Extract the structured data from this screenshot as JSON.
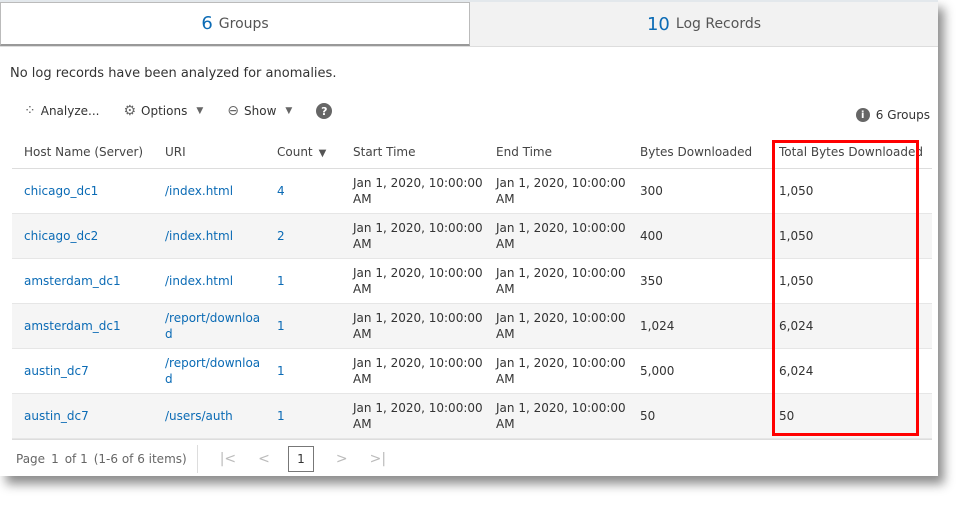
{
  "tabs": [
    {
      "num": "6",
      "label": "Groups"
    },
    {
      "num": "10",
      "label": "Log Records"
    }
  ],
  "message": "No log records have been analyzed for anomalies.",
  "toolbar": {
    "analyze": "Analyze...",
    "options": "Options",
    "show": "Show"
  },
  "group_count": "6 Groups",
  "columns": [
    "Host Name (Server)",
    "URI",
    "Count",
    "Start Time",
    "End Time",
    "Bytes Downloaded",
    "Total Bytes Downloaded"
  ],
  "rows": [
    [
      "chicago_dc1",
      "/index.html",
      "4",
      "Jan 1, 2020, 10:00:00 AM",
      "Jan 1, 2020, 10:00:00 AM",
      "300",
      "1,050"
    ],
    [
      "chicago_dc2",
      "/index.html",
      "2",
      "Jan 1, 2020, 10:00:00 AM",
      "Jan 1, 2020, 10:00:00 AM",
      "400",
      "1,050"
    ],
    [
      "amsterdam_dc1",
      "/index.html",
      "1",
      "Jan 1, 2020, 10:00:00 AM",
      "Jan 1, 2020, 10:00:00 AM",
      "350",
      "1,050"
    ],
    [
      "amsterdam_dc1",
      "/report/download",
      "1",
      "Jan 1, 2020, 10:00:00 AM",
      "Jan 1, 2020, 10:00:00 AM",
      "1,024",
      "6,024"
    ],
    [
      "austin_dc7",
      "/report/download",
      "1",
      "Jan 1, 2020, 10:00:00 AM",
      "Jan 1, 2020, 10:00:00 AM",
      "5,000",
      "6,024"
    ],
    [
      "austin_dc7",
      "/users/auth",
      "1",
      "Jan 1, 2020, 10:00:00 AM",
      "Jan 1, 2020, 10:00:00 AM",
      "50",
      "50"
    ]
  ],
  "pager": {
    "page_label": "Page",
    "page": "1",
    "of": "of 1",
    "range": "(1-6 of 6 items)",
    "current": "1"
  },
  "colors": {
    "link": "#0b6bb5",
    "highlight": "#ff0000"
  }
}
